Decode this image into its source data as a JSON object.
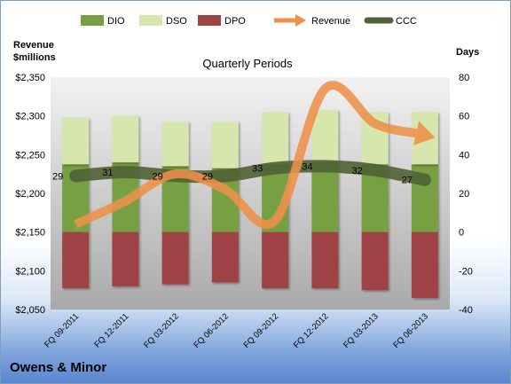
{
  "chart_data": {
    "type": "combo",
    "title": "Quarterly Periods",
    "company": "Owens & Minor",
    "legend_position": "top",
    "categories": [
      "FQ 09-2011",
      "FQ 12-2011",
      "FQ 03-2012",
      "FQ 06-2012",
      "FQ 09-2012",
      "FQ 12-2012",
      "FQ 03-2013",
      "FQ 06-2013"
    ],
    "left_axis": {
      "label_line1": "Revenue",
      "label_line2": "$millions",
      "ylim": [
        2050,
        2350
      ],
      "ticks": [
        "$2,050",
        "$2,100",
        "$2,150",
        "$2,200",
        "$2,250",
        "$2,300",
        "$2,350"
      ],
      "tick_values": [
        2050,
        2100,
        2150,
        2200,
        2250,
        2300,
        2350
      ]
    },
    "right_axis": {
      "label": "Days",
      "ylim": [
        -40,
        80
      ],
      "ticks": [
        "-40",
        "-20",
        "0",
        "20",
        "40",
        "60",
        "80"
      ],
      "tick_values": [
        -40,
        -20,
        0,
        20,
        40,
        60,
        80
      ]
    },
    "series": [
      {
        "name": "DIO",
        "kind": "bar-stack-positive",
        "color": "#77a043",
        "values": [
          35,
          36,
          34,
          33,
          35,
          36,
          35,
          35
        ]
      },
      {
        "name": "DSO",
        "kind": "bar-stack-positive",
        "color": "#d6e6ad",
        "values": [
          24,
          24,
          23,
          24,
          27,
          27,
          27,
          27
        ]
      },
      {
        "name": "DPO",
        "kind": "bar-negative",
        "color": "#9e4344",
        "values": [
          -29,
          -28,
          -27,
          -26,
          -29,
          -29,
          -30,
          -34
        ]
      },
      {
        "name": "Revenue",
        "kind": "arrow-line",
        "color": "#ee8f4a",
        "values": [
          2160,
          2190,
          2225,
          2205,
          2165,
          2335,
          2290,
          2275
        ]
      },
      {
        "name": "CCC",
        "kind": "line",
        "color": "#516336",
        "values": [
          29,
          31,
          29,
          29,
          33,
          34,
          32,
          27
        ],
        "labels": [
          "29",
          "31",
          "29",
          "29",
          "33",
          "34",
          "32",
          "27"
        ]
      }
    ],
    "grid": false
  }
}
